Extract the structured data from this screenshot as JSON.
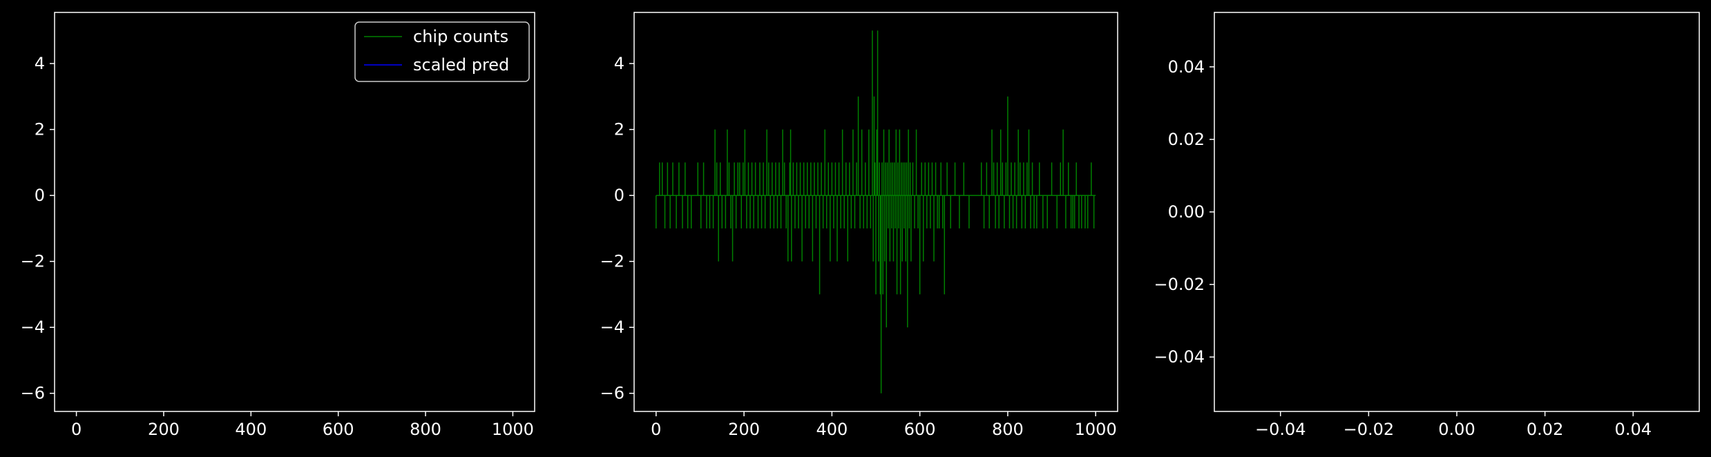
{
  "theme": {
    "background": "#000000",
    "foreground": "#ffffff",
    "counts_color": "#008000",
    "pred_color": "#0000ff"
  },
  "chart_data": [
    {
      "type": "line",
      "title": "",
      "xlabel": "",
      "ylabel": "",
      "xlim": [
        -50,
        1050
      ],
      "ylim": [
        -6.55,
        5.55
      ],
      "xticks": [
        0,
        200,
        400,
        600,
        800,
        1000
      ],
      "yticks": [
        -6,
        -4,
        -2,
        0,
        2,
        4
      ],
      "xtick_labels": [
        "0",
        "200",
        "400",
        "600",
        "800",
        "1000"
      ],
      "ytick_labels": [
        "−6",
        "−4",
        "−2",
        "0",
        "2",
        "4"
      ],
      "legend": {
        "position": "upper right",
        "entries": [
          "chip counts",
          "scaled pred"
        ]
      },
      "series": [
        {
          "name": "chip counts",
          "color": "#008000",
          "spikes": [
            [
              0,
              -1
            ],
            [
              8,
              1
            ],
            [
              14,
              1
            ],
            [
              20,
              -1
            ],
            [
              26,
              1
            ],
            [
              32,
              -1
            ],
            [
              38,
              1
            ],
            [
              46,
              -1
            ],
            [
              52,
              1
            ],
            [
              60,
              -1
            ],
            [
              66,
              1
            ],
            [
              72,
              -1
            ],
            [
              80,
              -1
            ],
            [
              95,
              1
            ],
            [
              102,
              -1
            ],
            [
              108,
              1
            ],
            [
              115,
              -1
            ],
            [
              122,
              -1
            ],
            [
              130,
              -1
            ],
            [
              134,
              2
            ],
            [
              138,
              1
            ],
            [
              142,
              -2
            ],
            [
              146,
              1
            ],
            [
              150,
              -1
            ],
            [
              158,
              -1
            ],
            [
              162,
              2
            ],
            [
              166,
              1
            ],
            [
              170,
              -1
            ],
            [
              174,
              -2
            ],
            [
              178,
              1
            ],
            [
              182,
              -1
            ],
            [
              186,
              1
            ],
            [
              190,
              1
            ],
            [
              194,
              -1
            ],
            [
              198,
              1
            ],
            [
              202,
              2
            ],
            [
              206,
              -1
            ],
            [
              210,
              1
            ],
            [
              214,
              -1
            ],
            [
              218,
              1
            ],
            [
              222,
              -1
            ],
            [
              226,
              1
            ],
            [
              232,
              -1
            ],
            [
              236,
              1
            ],
            [
              240,
              -1
            ],
            [
              244,
              1
            ],
            [
              248,
              -1
            ],
            [
              252,
              2
            ],
            [
              256,
              1
            ],
            [
              260,
              -1
            ],
            [
              264,
              1
            ],
            [
              268,
              -1
            ],
            [
              272,
              1
            ],
            [
              276,
              -1
            ],
            [
              280,
              1
            ],
            [
              284,
              -1
            ],
            [
              288,
              2
            ],
            [
              292,
              1
            ],
            [
              296,
              -1
            ],
            [
              300,
              -2
            ],
            [
              304,
              1
            ],
            [
              306,
              2
            ],
            [
              308,
              -2
            ],
            [
              312,
              1
            ],
            [
              316,
              -1
            ],
            [
              320,
              1
            ],
            [
              324,
              -1
            ],
            [
              328,
              1
            ],
            [
              332,
              -2
            ],
            [
              336,
              1
            ],
            [
              340,
              -1
            ],
            [
              344,
              1
            ],
            [
              348,
              -1
            ],
            [
              352,
              1
            ],
            [
              356,
              -2
            ],
            [
              360,
              1
            ],
            [
              364,
              -1
            ],
            [
              368,
              1
            ],
            [
              372,
              -3
            ],
            [
              376,
              1
            ],
            [
              380,
              -1
            ],
            [
              384,
              2
            ],
            [
              388,
              -1
            ],
            [
              392,
              1
            ],
            [
              396,
              -2
            ],
            [
              400,
              1
            ],
            [
              404,
              -1
            ],
            [
              408,
              1
            ],
            [
              412,
              -2
            ],
            [
              416,
              1
            ],
            [
              420,
              -1
            ],
            [
              424,
              2
            ],
            [
              428,
              -1
            ],
            [
              432,
              1
            ],
            [
              436,
              -2
            ],
            [
              440,
              1
            ],
            [
              444,
              -1
            ],
            [
              448,
              2
            ],
            [
              452,
              -1
            ],
            [
              456,
              1
            ],
            [
              460,
              3
            ],
            [
              464,
              -1
            ],
            [
              468,
              2
            ],
            [
              472,
              -1
            ],
            [
              476,
              1
            ],
            [
              480,
              -1
            ],
            [
              484,
              2
            ],
            [
              488,
              -1
            ],
            [
              492,
              5
            ],
            [
              494,
              -2
            ],
            [
              496,
              3
            ],
            [
              498,
              1
            ],
            [
              500,
              -3
            ],
            [
              502,
              2
            ],
            [
              504,
              5
            ],
            [
              506,
              -2
            ],
            [
              508,
              1
            ],
            [
              510,
              -3
            ],
            [
              512,
              -6
            ],
            [
              514,
              1
            ],
            [
              516,
              -3
            ],
            [
              518,
              2
            ],
            [
              520,
              -2
            ],
            [
              522,
              1
            ],
            [
              524,
              -4
            ],
            [
              526,
              1
            ],
            [
              528,
              -1
            ],
            [
              530,
              2
            ],
            [
              532,
              -2
            ],
            [
              534,
              1
            ],
            [
              536,
              -1
            ],
            [
              538,
              1
            ],
            [
              540,
              -2
            ],
            [
              542,
              1
            ],
            [
              544,
              -1
            ],
            [
              546,
              2
            ],
            [
              548,
              -3
            ],
            [
              550,
              1
            ],
            [
              552,
              -1
            ],
            [
              554,
              2
            ],
            [
              556,
              -3
            ],
            [
              558,
              1
            ],
            [
              560,
              -2
            ],
            [
              562,
              1
            ],
            [
              564,
              -1
            ],
            [
              566,
              1
            ],
            [
              568,
              -2
            ],
            [
              570,
              1
            ],
            [
              572,
              -4
            ],
            [
              574,
              2
            ],
            [
              576,
              -1
            ],
            [
              578,
              1
            ],
            [
              580,
              -2
            ],
            [
              584,
              1
            ],
            [
              588,
              -1
            ],
            [
              592,
              2
            ],
            [
              596,
              -1
            ],
            [
              600,
              -3
            ],
            [
              604,
              1
            ],
            [
              608,
              -2
            ],
            [
              612,
              1
            ],
            [
              616,
              -1
            ],
            [
              620,
              1
            ],
            [
              624,
              -1
            ],
            [
              628,
              1
            ],
            [
              632,
              -2
            ],
            [
              636,
              1
            ],
            [
              640,
              -1
            ],
            [
              644,
              -1
            ],
            [
              648,
              1
            ],
            [
              652,
              -1
            ],
            [
              656,
              -3
            ],
            [
              662,
              1
            ],
            [
              670,
              -1
            ],
            [
              680,
              1
            ],
            [
              690,
              -1
            ],
            [
              700,
              1
            ],
            [
              712,
              -1
            ],
            [
              740,
              1
            ],
            [
              746,
              -1
            ],
            [
              752,
              1
            ],
            [
              758,
              -1
            ],
            [
              764,
              2
            ],
            [
              768,
              1
            ],
            [
              772,
              -1
            ],
            [
              776,
              1
            ],
            [
              780,
              -1
            ],
            [
              784,
              2
            ],
            [
              788,
              1
            ],
            [
              792,
              -1
            ],
            [
              796,
              1
            ],
            [
              800,
              3
            ],
            [
              804,
              -1
            ],
            [
              808,
              1
            ],
            [
              812,
              -1
            ],
            [
              816,
              1
            ],
            [
              820,
              -1
            ],
            [
              824,
              2
            ],
            [
              828,
              1
            ],
            [
              832,
              -1
            ],
            [
              836,
              1
            ],
            [
              840,
              -1
            ],
            [
              844,
              1
            ],
            [
              848,
              2
            ],
            [
              852,
              -1
            ],
            [
              856,
              1
            ],
            [
              860,
              -1
            ],
            [
              866,
              -1
            ],
            [
              872,
              1
            ],
            [
              880,
              -1
            ],
            [
              890,
              -1
            ],
            [
              900,
              1
            ],
            [
              912,
              -1
            ],
            [
              920,
              1
            ],
            [
              926,
              2
            ],
            [
              932,
              -1
            ],
            [
              938,
              1
            ],
            [
              944,
              -1
            ],
            [
              948,
              -1
            ],
            [
              952,
              -1
            ],
            [
              956,
              1
            ],
            [
              962,
              -1
            ],
            [
              968,
              -1
            ],
            [
              976,
              -1
            ],
            [
              982,
              -1
            ],
            [
              990,
              1
            ],
            [
              996,
              -1
            ]
          ]
        },
        {
          "name": "scaled pred",
          "color": "#0000ff",
          "spikes": []
        }
      ]
    },
    {
      "type": "line",
      "title": "",
      "xlabel": "",
      "ylabel": "",
      "xlim": [
        -50,
        1050
      ],
      "ylim": [
        -6.55,
        5.55
      ],
      "xticks": [
        0,
        200,
        400,
        600,
        800,
        1000
      ],
      "yticks": [
        -6,
        -4,
        -2,
        0,
        2,
        4
      ],
      "xtick_labels": [
        "0",
        "200",
        "400",
        "600",
        "800",
        "1000"
      ],
      "ytick_labels": [
        "−6",
        "−4",
        "−2",
        "0",
        "2",
        "4"
      ],
      "legend": null,
      "series": [
        {
          "name": "",
          "color": "#008000",
          "same_as": "panel-1-chip-counts"
        }
      ]
    },
    {
      "type": "line",
      "title": "",
      "xlabel": "",
      "ylabel": "",
      "xlim": [
        -0.055,
        0.055
      ],
      "ylim": [
        -0.055,
        0.055
      ],
      "xticks": [
        -0.04,
        -0.02,
        0.0,
        0.02,
        0.04
      ],
      "yticks": [
        -0.04,
        -0.02,
        0.0,
        0.02,
        0.04
      ],
      "xtick_labels": [
        "−0.04",
        "−0.02",
        "0.00",
        "0.02",
        "0.04"
      ],
      "ytick_labels": [
        "−0.04",
        "−0.02",
        "0.00",
        "0.02",
        "0.04"
      ],
      "legend": null,
      "series": []
    }
  ]
}
